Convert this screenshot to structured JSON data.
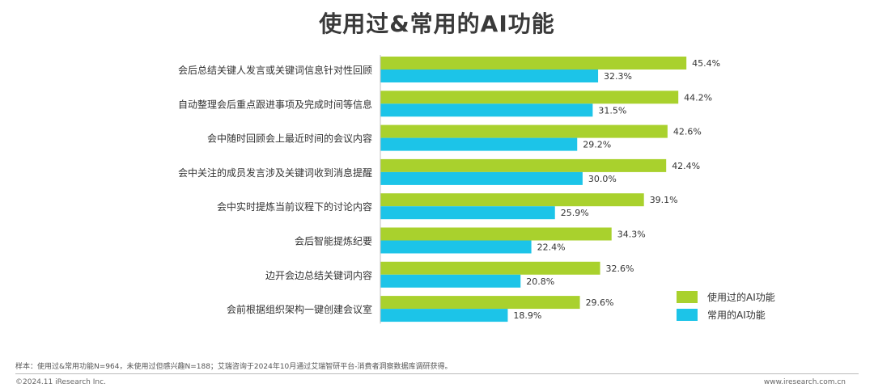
{
  "chart_data": {
    "type": "bar",
    "orientation": "horizontal",
    "title": "使用过&常用的AI功能",
    "categories": [
      "会后总结关键人发言或关键词信息针对性回顾",
      "自动整理会后重点跟进事项及完成时间等信息",
      "会中随时回顾会上最近时间的会议内容",
      "会中关注的成员发言涉及关键词收到消息提醒",
      "会中实时提炼当前议程下的讨论内容",
      "会后智能提炼纪要",
      "边开会边总结关键词内容",
      "会前根据组织架构一键创建会议室"
    ],
    "series": [
      {
        "name": "使用过的AI功能",
        "color": "#a9d12d",
        "values": [
          45.4,
          44.2,
          42.6,
          42.4,
          39.1,
          34.3,
          32.6,
          29.6
        ],
        "labels": [
          "45.4%",
          "44.2%",
          "42.6%",
          "42.4%",
          "39.1%",
          "34.3%",
          "32.6%",
          "29.6%"
        ]
      },
      {
        "name": "常用的AI功能",
        "color": "#1cc4e8",
        "values": [
          32.3,
          31.5,
          29.2,
          30.0,
          25.9,
          22.4,
          20.8,
          18.9
        ],
        "labels": [
          "32.3%",
          "31.5%",
          "29.2%",
          "30.0%",
          "25.9%",
          "22.4%",
          "20.8%",
          "18.9%"
        ]
      }
    ],
    "value_unit": "%",
    "legend_position": "bottom-right",
    "grid": false
  },
  "footnote": "样本：使用过&常用功能N=964，未使用过但感兴趣N=188；艾瑞咨询于2024年10月通过艾瑞智研平台-消费者洞察数据库调研获得。",
  "copyright": "©2024.11 iResearch Inc.",
  "website": "www.iresearch.com.cn"
}
